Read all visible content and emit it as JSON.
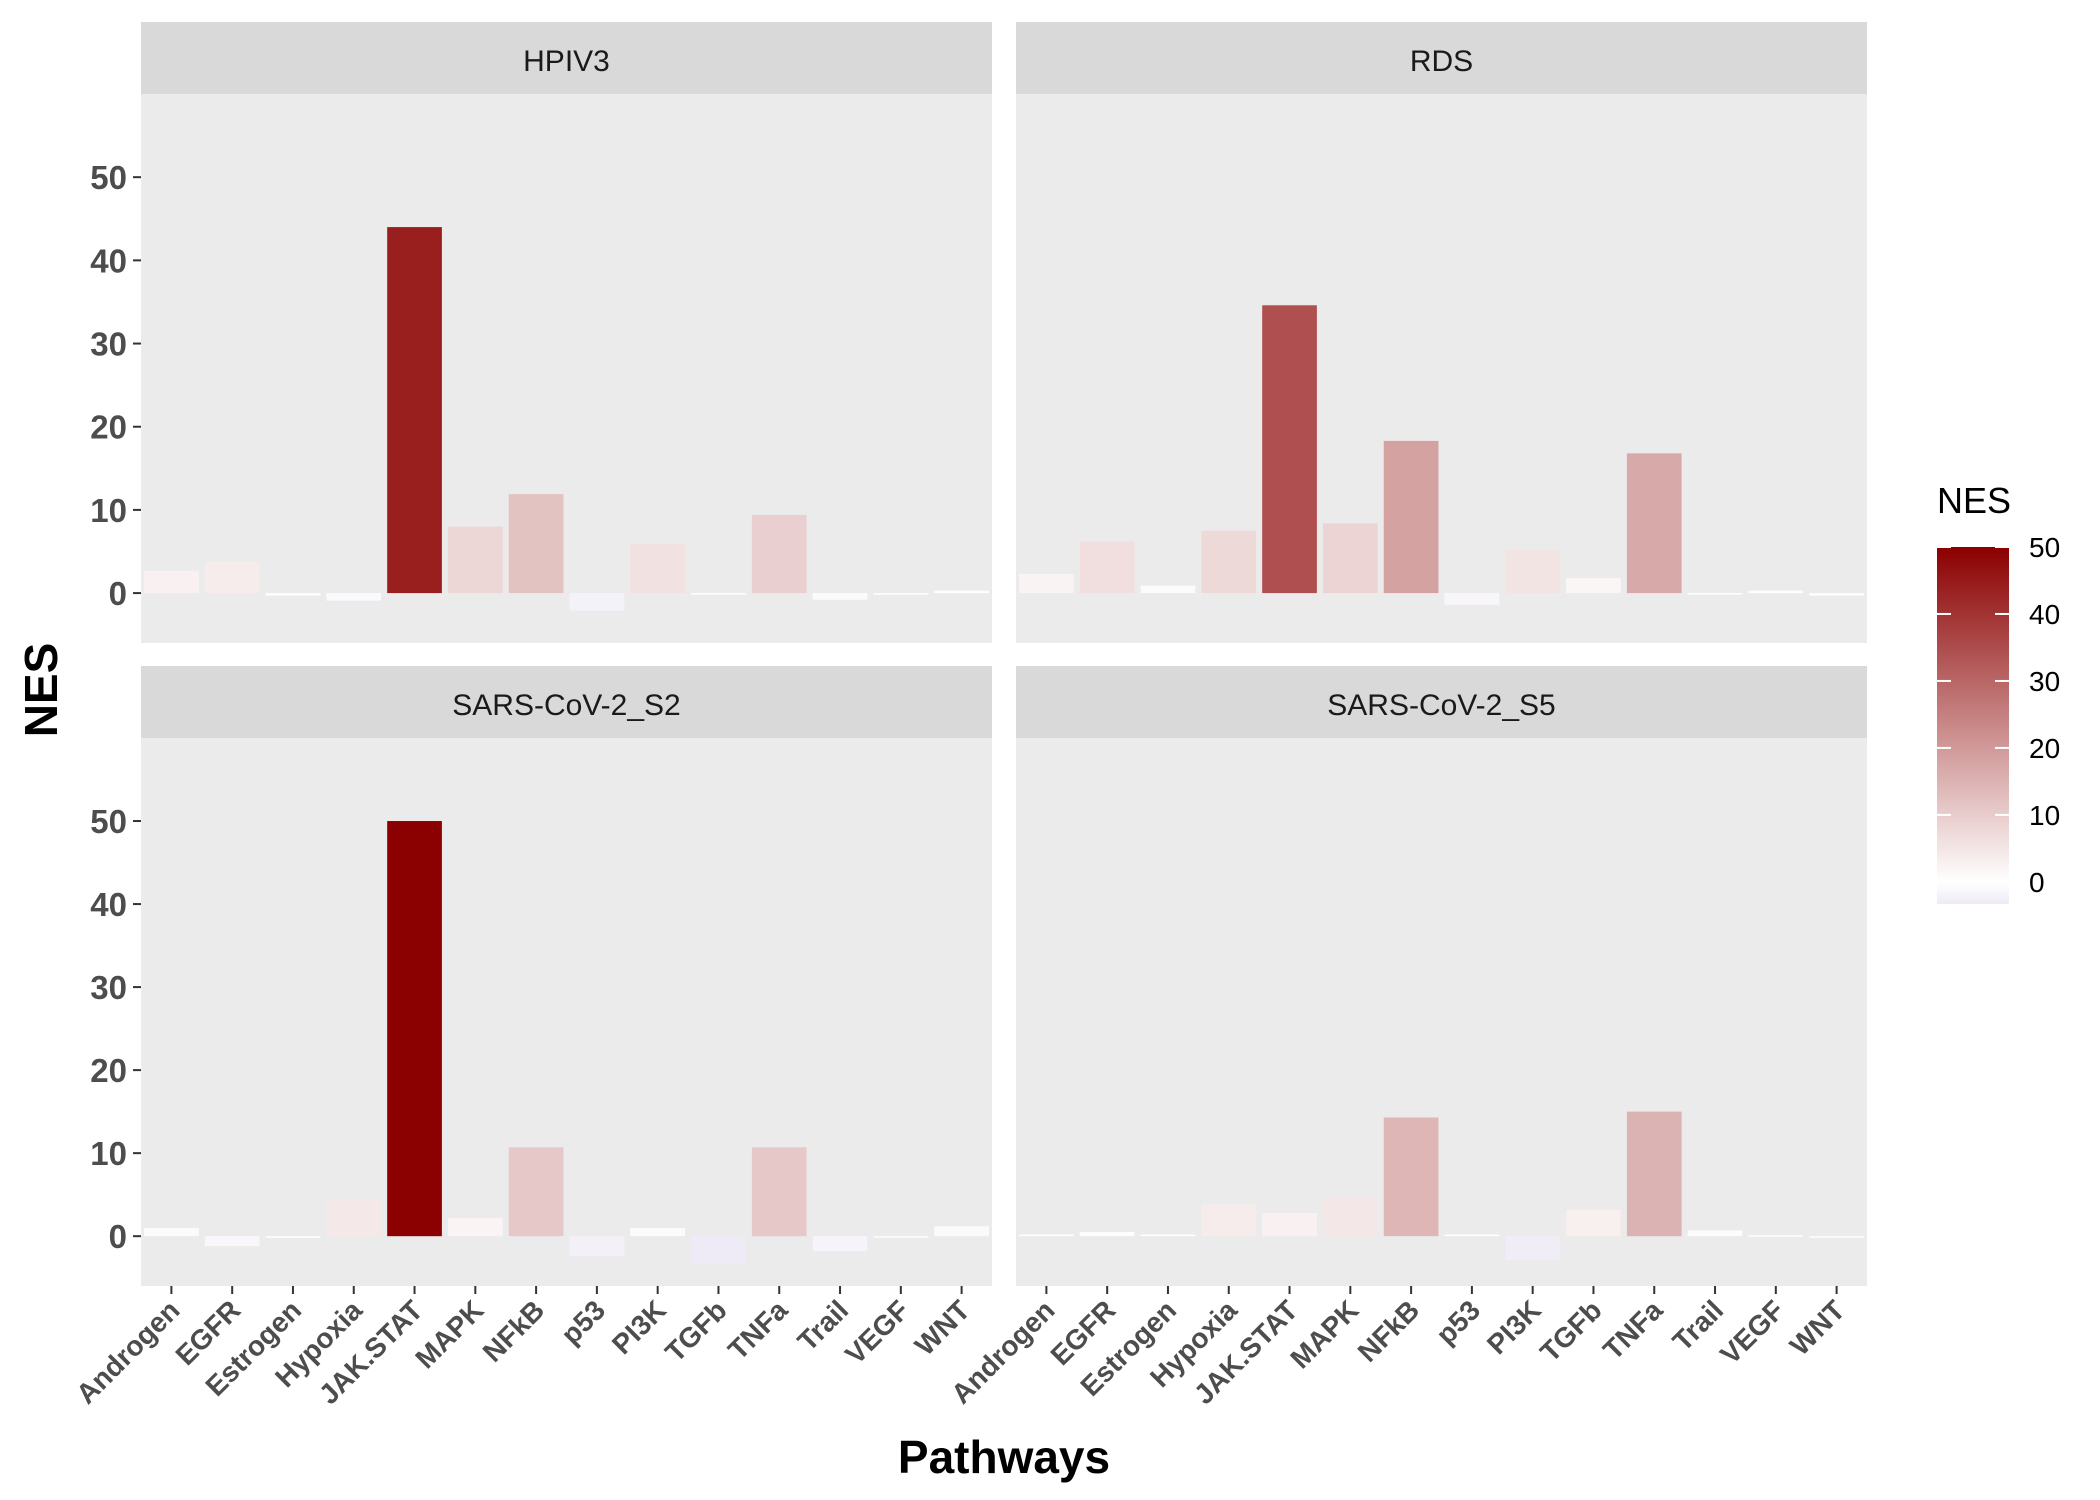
{
  "chart_data": {
    "type": "bar",
    "xlabel": "Pathways",
    "ylabel": "NES",
    "ylim": [
      -6,
      60
    ],
    "yticks": [
      0,
      10,
      20,
      30,
      40,
      50
    ],
    "categories": [
      "Androgen",
      "EGFR",
      "Estrogen",
      "Hypoxia",
      "JAK.STAT",
      "MAPK",
      "NFkB",
      "p53",
      "PI3K",
      "TGFb",
      "TNFa",
      "Trail",
      "VEGF",
      "WNT"
    ],
    "panels": [
      {
        "name": "HPIV3",
        "values": [
          2.7,
          3.8,
          -0.3,
          -0.9,
          44.0,
          8.0,
          11.9,
          -2.1,
          5.9,
          0.0,
          9.4,
          -0.8,
          -0.2,
          0.3
        ]
      },
      {
        "name": "RDS",
        "values": [
          2.3,
          6.2,
          0.9,
          7.5,
          34.6,
          8.4,
          18.3,
          -1.4,
          5.2,
          1.8,
          16.8,
          0.0,
          0.3,
          -0.3
        ]
      },
      {
        "name": "SARS-CoV-2_S2",
        "values": [
          1.0,
          -1.2,
          -0.2,
          4.5,
          50.0,
          2.2,
          10.7,
          -2.4,
          1.0,
          -3.3,
          10.7,
          -1.8,
          -0.1,
          1.2
        ]
      },
      {
        "name": "SARS-CoV-2_S5",
        "values": [
          0.2,
          0.5,
          0.2,
          3.8,
          2.8,
          4.7,
          14.3,
          0.2,
          -2.9,
          3.2,
          15.0,
          0.7,
          0.1,
          -0.1
        ]
      }
    ],
    "legend": {
      "title": "NES",
      "position": "right",
      "ticks": [
        0,
        10,
        20,
        30,
        40,
        50
      ],
      "range": [
        -3.3,
        50
      ]
    },
    "colors": {
      "low": "#eeeaf6",
      "mid": "#ffffff",
      "high": "#8b0000"
    },
    "grid": false
  }
}
